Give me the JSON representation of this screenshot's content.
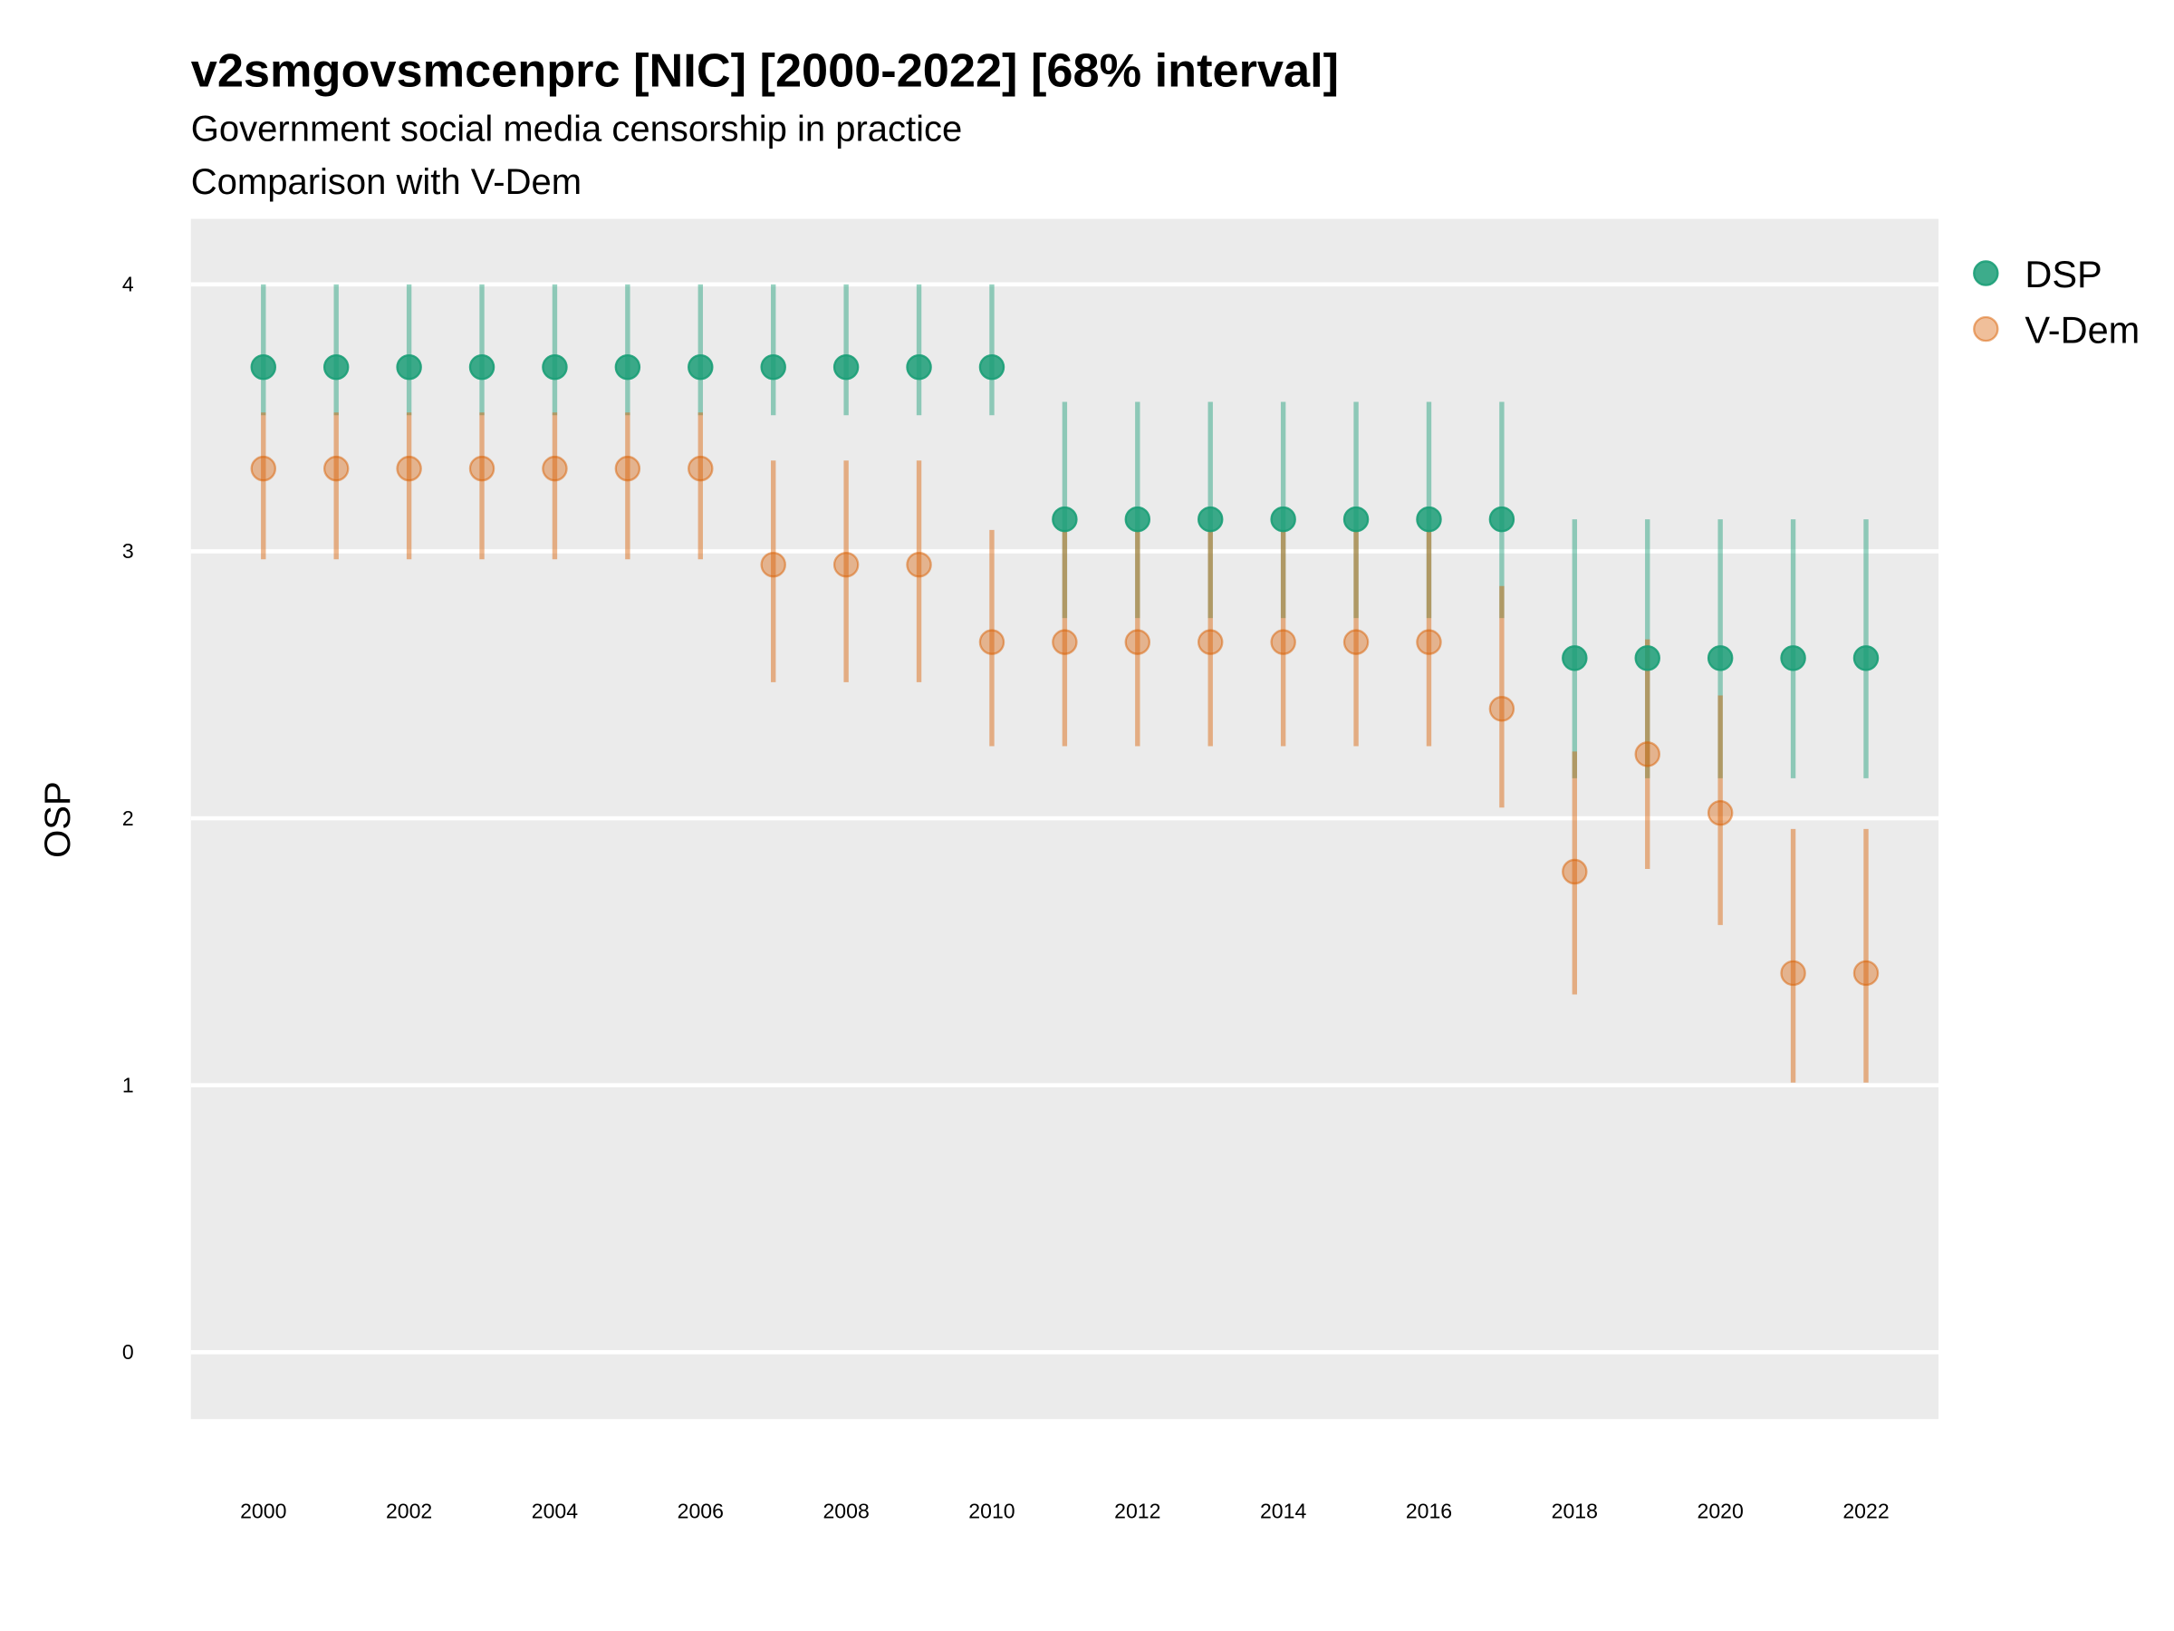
{
  "chart_data": {
    "type": "scatter",
    "title": "v2smgovsmcenprc [NIC] [2000-2022] [68% interval]",
    "subtitle": "Government social media censorship in practice",
    "caption": "Comparison with V-Dem",
    "xlabel": "",
    "ylabel": "OSP",
    "ylim": [
      -0.25,
      4.25
    ],
    "xlim": [
      1999,
      2023
    ],
    "yticks": [
      0,
      1,
      2,
      3,
      4
    ],
    "xticks": [
      2000,
      2002,
      2004,
      2006,
      2008,
      2010,
      2012,
      2014,
      2016,
      2018,
      2020,
      2022
    ],
    "grid": true,
    "legend_position": "right",
    "x": [
      2000,
      2001,
      2002,
      2003,
      2004,
      2005,
      2006,
      2007,
      2008,
      2009,
      2010,
      2011,
      2012,
      2013,
      2014,
      2015,
      2016,
      2017,
      2018,
      2019,
      2020,
      2021,
      2022
    ],
    "series": [
      {
        "name": "DSP",
        "color": "#1b9e77",
        "values": [
          3.69,
          3.69,
          3.69,
          3.69,
          3.69,
          3.69,
          3.69,
          3.69,
          3.69,
          3.69,
          3.69,
          3.12,
          3.12,
          3.12,
          3.12,
          3.12,
          3.12,
          3.12,
          2.6,
          2.6,
          2.6,
          2.6,
          2.6
        ],
        "lower": [
          3.51,
          3.51,
          3.51,
          3.51,
          3.51,
          3.51,
          3.51,
          3.51,
          3.51,
          3.51,
          3.51,
          2.75,
          2.75,
          2.75,
          2.75,
          2.75,
          2.75,
          2.75,
          2.15,
          2.15,
          2.15,
          2.15,
          2.15
        ],
        "upper": [
          4.0,
          4.0,
          4.0,
          4.0,
          4.0,
          4.0,
          4.0,
          4.0,
          4.0,
          4.0,
          4.0,
          3.56,
          3.56,
          3.56,
          3.56,
          3.56,
          3.56,
          3.56,
          3.12,
          3.12,
          3.12,
          3.12,
          3.12
        ]
      },
      {
        "name": "V-Dem",
        "color": "#d95f02",
        "values": [
          3.31,
          3.31,
          3.31,
          3.31,
          3.31,
          3.31,
          3.31,
          2.95,
          2.95,
          2.95,
          2.66,
          2.66,
          2.66,
          2.66,
          2.66,
          2.66,
          2.66,
          2.41,
          1.8,
          2.24,
          2.02,
          1.42,
          1.42
        ],
        "lower": [
          2.97,
          2.97,
          2.97,
          2.97,
          2.97,
          2.97,
          2.97,
          2.51,
          2.51,
          2.51,
          2.27,
          2.27,
          2.27,
          2.27,
          2.27,
          2.27,
          2.27,
          2.04,
          1.34,
          1.81,
          1.6,
          1.01,
          1.01
        ],
        "upper": [
          3.52,
          3.52,
          3.52,
          3.52,
          3.52,
          3.52,
          3.52,
          3.34,
          3.34,
          3.34,
          3.08,
          3.08,
          3.08,
          3.08,
          3.08,
          3.08,
          3.08,
          2.87,
          2.25,
          2.67,
          2.46,
          1.96,
          1.96
        ]
      }
    ]
  }
}
